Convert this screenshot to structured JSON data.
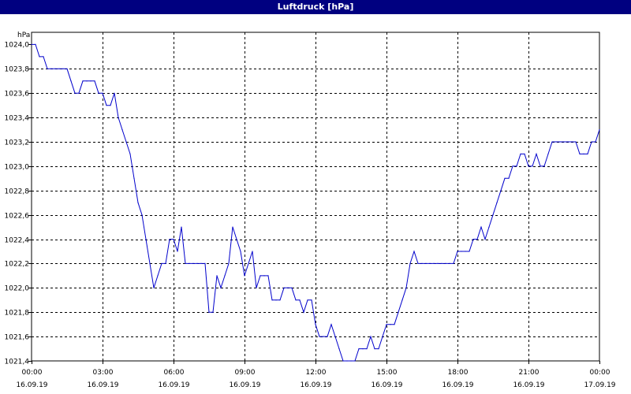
{
  "window": {
    "title": "Luftdruck [hPa]"
  },
  "chart_data": {
    "type": "line",
    "title": "Luftdruck [hPa]",
    "ylabel": "hPa",
    "xlabel": "",
    "grid": true,
    "ylim": [
      1021.4,
      1024.1
    ],
    "xlim": [
      "2019-09-16 00:00",
      "2019-09-17 00:00"
    ],
    "y_ticks": [
      "1024,0",
      "1023,8",
      "1023,6",
      "1023,4",
      "1023,2",
      "1023,0",
      "1022,8",
      "1022,6",
      "1022,4",
      "1022,2",
      "1022,0",
      "1021,8",
      "1021,6",
      "1021,4"
    ],
    "x_ticks": [
      {
        "time": "00:00",
        "date": "16.09.19"
      },
      {
        "time": "03:00",
        "date": "16.09.19"
      },
      {
        "time": "06:00",
        "date": "16.09.19"
      },
      {
        "time": "09:00",
        "date": "16.09.19"
      },
      {
        "time": "12:00",
        "date": "16.09.19"
      },
      {
        "time": "15:00",
        "date": "16.09.19"
      },
      {
        "time": "18:00",
        "date": "16.09.19"
      },
      {
        "time": "21:00",
        "date": "16.09.19"
      },
      {
        "time": "00:00",
        "date": "17.09.19"
      }
    ],
    "series": [
      {
        "color": "#0000cc",
        "points": [
          [
            "00:00",
            1024.0
          ],
          [
            "00:10",
            1024.0
          ],
          [
            "00:20",
            1023.9
          ],
          [
            "00:30",
            1023.9
          ],
          [
            "00:40",
            1023.8
          ],
          [
            "00:50",
            1023.8
          ],
          [
            "01:00",
            1023.8
          ],
          [
            "01:10",
            1023.8
          ],
          [
            "01:20",
            1023.8
          ],
          [
            "01:30",
            1023.8
          ],
          [
            "01:40",
            1023.7
          ],
          [
            "01:50",
            1023.6
          ],
          [
            "02:00",
            1023.6
          ],
          [
            "02:10",
            1023.7
          ],
          [
            "02:20",
            1023.7
          ],
          [
            "02:30",
            1023.7
          ],
          [
            "02:40",
            1023.7
          ],
          [
            "02:50",
            1023.6
          ],
          [
            "03:00",
            1023.6
          ],
          [
            "03:10",
            1023.5
          ],
          [
            "03:20",
            1023.5
          ],
          [
            "03:30",
            1023.6
          ],
          [
            "03:40",
            1023.4
          ],
          [
            "03:50",
            1023.3
          ],
          [
            "04:00",
            1023.2
          ],
          [
            "04:10",
            1023.1
          ],
          [
            "04:20",
            1022.9
          ],
          [
            "04:30",
            1022.7
          ],
          [
            "04:40",
            1022.6
          ],
          [
            "04:50",
            1022.4
          ],
          [
            "05:00",
            1022.2
          ],
          [
            "05:10",
            1022.0
          ],
          [
            "05:20",
            1022.1
          ],
          [
            "05:30",
            1022.2
          ],
          [
            "05:40",
            1022.2
          ],
          [
            "05:50",
            1022.4
          ],
          [
            "06:00",
            1022.4
          ],
          [
            "06:10",
            1022.3
          ],
          [
            "06:20",
            1022.5
          ],
          [
            "06:30",
            1022.2
          ],
          [
            "06:40",
            1022.2
          ],
          [
            "06:50",
            1022.2
          ],
          [
            "07:00",
            1022.2
          ],
          [
            "07:10",
            1022.2
          ],
          [
            "07:20",
            1022.2
          ],
          [
            "07:30",
            1021.8
          ],
          [
            "07:40",
            1021.8
          ],
          [
            "07:50",
            1022.1
          ],
          [
            "08:00",
            1022.0
          ],
          [
            "08:10",
            1022.1
          ],
          [
            "08:20",
            1022.2
          ],
          [
            "08:30",
            1022.5
          ],
          [
            "08:40",
            1022.4
          ],
          [
            "08:50",
            1022.3
          ],
          [
            "09:00",
            1022.1
          ],
          [
            "09:10",
            1022.2
          ],
          [
            "09:20",
            1022.3
          ],
          [
            "09:30",
            1022.0
          ],
          [
            "09:40",
            1022.1
          ],
          [
            "09:50",
            1022.1
          ],
          [
            "10:00",
            1022.1
          ],
          [
            "10:10",
            1021.9
          ],
          [
            "10:20",
            1021.9
          ],
          [
            "10:30",
            1021.9
          ],
          [
            "10:40",
            1022.0
          ],
          [
            "10:50",
            1022.0
          ],
          [
            "11:00",
            1022.0
          ],
          [
            "11:10",
            1021.9
          ],
          [
            "11:20",
            1021.9
          ],
          [
            "11:30",
            1021.8
          ],
          [
            "11:40",
            1021.9
          ],
          [
            "11:50",
            1021.9
          ],
          [
            "12:00",
            1021.7
          ],
          [
            "12:10",
            1021.6
          ],
          [
            "12:20",
            1021.6
          ],
          [
            "12:30",
            1021.6
          ],
          [
            "12:40",
            1021.7
          ],
          [
            "12:50",
            1021.6
          ],
          [
            "13:00",
            1021.5
          ],
          [
            "13:10",
            1021.4
          ],
          [
            "13:20",
            1021.4
          ],
          [
            "13:30",
            1021.4
          ],
          [
            "13:40",
            1021.4
          ],
          [
            "13:50",
            1021.5
          ],
          [
            "14:00",
            1021.5
          ],
          [
            "14:10",
            1021.5
          ],
          [
            "14:20",
            1021.6
          ],
          [
            "14:30",
            1021.5
          ],
          [
            "14:40",
            1021.5
          ],
          [
            "14:50",
            1021.6
          ],
          [
            "15:00",
            1021.7
          ],
          [
            "15:10",
            1021.7
          ],
          [
            "15:20",
            1021.7
          ],
          [
            "15:30",
            1021.8
          ],
          [
            "15:40",
            1021.9
          ],
          [
            "15:50",
            1022.0
          ],
          [
            "16:00",
            1022.2
          ],
          [
            "16:10",
            1022.3
          ],
          [
            "16:20",
            1022.2
          ],
          [
            "16:30",
            1022.2
          ],
          [
            "16:40",
            1022.2
          ],
          [
            "16:50",
            1022.2
          ],
          [
            "17:00",
            1022.2
          ],
          [
            "17:10",
            1022.2
          ],
          [
            "17:20",
            1022.2
          ],
          [
            "17:30",
            1022.2
          ],
          [
            "17:40",
            1022.2
          ],
          [
            "17:50",
            1022.2
          ],
          [
            "18:00",
            1022.3
          ],
          [
            "18:10",
            1022.3
          ],
          [
            "18:20",
            1022.3
          ],
          [
            "18:30",
            1022.3
          ],
          [
            "18:40",
            1022.4
          ],
          [
            "18:50",
            1022.4
          ],
          [
            "19:00",
            1022.5
          ],
          [
            "19:10",
            1022.4
          ],
          [
            "19:20",
            1022.5
          ],
          [
            "19:30",
            1022.6
          ],
          [
            "19:40",
            1022.7
          ],
          [
            "19:50",
            1022.8
          ],
          [
            "20:00",
            1022.9
          ],
          [
            "20:10",
            1022.9
          ],
          [
            "20:20",
            1023.0
          ],
          [
            "20:30",
            1023.0
          ],
          [
            "20:40",
            1023.1
          ],
          [
            "20:50",
            1023.1
          ],
          [
            "21:00",
            1023.0
          ],
          [
            "21:10",
            1023.0
          ],
          [
            "21:20",
            1023.1
          ],
          [
            "21:30",
            1023.0
          ],
          [
            "21:40",
            1023.0
          ],
          [
            "21:50",
            1023.1
          ],
          [
            "22:00",
            1023.2
          ],
          [
            "22:10",
            1023.2
          ],
          [
            "22:20",
            1023.2
          ],
          [
            "22:30",
            1023.2
          ],
          [
            "22:40",
            1023.2
          ],
          [
            "22:50",
            1023.2
          ],
          [
            "23:00",
            1023.2
          ],
          [
            "23:10",
            1023.1
          ],
          [
            "23:20",
            1023.1
          ],
          [
            "23:30",
            1023.1
          ],
          [
            "23:40",
            1023.2
          ],
          [
            "23:50",
            1023.2
          ],
          [
            "24:00",
            1023.3
          ]
        ]
      }
    ]
  }
}
